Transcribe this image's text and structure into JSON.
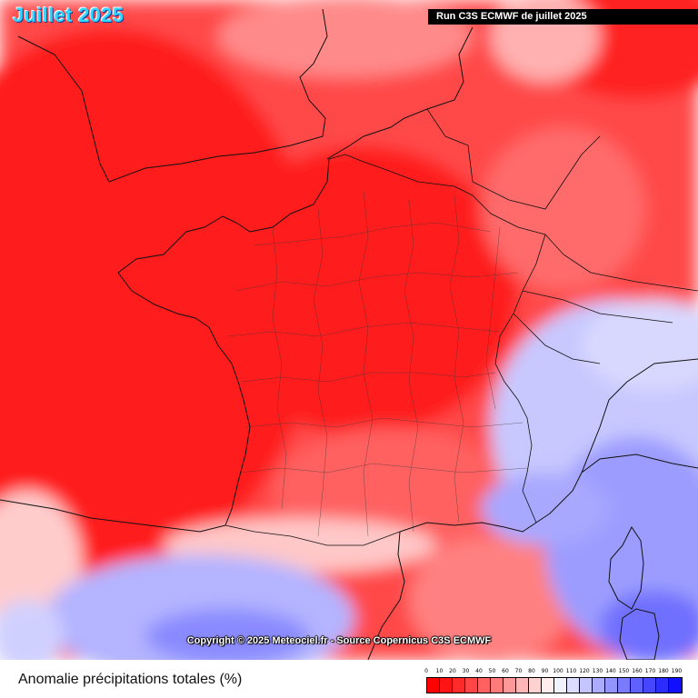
{
  "header": {
    "title": "Juillet 2025",
    "run_label": "Run C3S ECMWF de juillet 2025"
  },
  "map": {
    "copyright": "Copyright © 2025 Meteociel.fr - Source Copernicus C3S ECMWF",
    "variable": "Anomalie précipitations totales (%)"
  },
  "legend": {
    "title": "Anomalie précipitations totales (%)",
    "ticks": [
      "0",
      "10",
      "20",
      "30",
      "40",
      "50",
      "60",
      "70",
      "80",
      "90",
      "100",
      "110",
      "120",
      "130",
      "140",
      "150",
      "160",
      "170",
      "180",
      "190"
    ],
    "colors": [
      "#ff0000",
      "#ff1414",
      "#ff2b2b",
      "#ff4545",
      "#ff6060",
      "#ff7b7b",
      "#ff9898",
      "#ffb6b6",
      "#ffd2d2",
      "#ffecec",
      "#f2f2ff",
      "#dcdcff",
      "#c4c4ff",
      "#acacff",
      "#9494ff",
      "#7a7aff",
      "#6060ff",
      "#4646ff",
      "#2c2cff",
      "#1010ff"
    ]
  }
}
